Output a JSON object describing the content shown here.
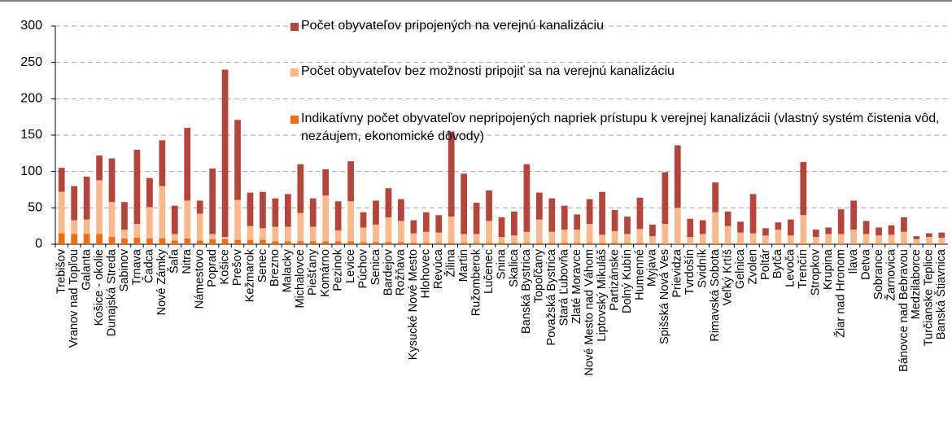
{
  "chart_data": {
    "type": "stacked_bar",
    "categories": [
      "Trebišov",
      "Vranov nad Topľou",
      "Galanta",
      "Košice - okolie",
      "Dunajská Streda",
      "Sabinov",
      "Trnava",
      "Čadca",
      "Nové Zámky",
      "Šaľa",
      "Nitra",
      "Námestovo",
      "Poprad",
      "Košice",
      "Prešov",
      "Kežmarok",
      "Senec",
      "Brezno",
      "Malacky",
      "Michalovce",
      "Piešťany",
      "Komárno",
      "Pezinok",
      "Levice",
      "Púchov",
      "Senica",
      "Bardejov",
      "Rožňava",
      "Kysucké Nové Mesto",
      "Hlohovec",
      "Revúca",
      "Žilina",
      "Martin",
      "Ružomberok",
      "Lučenec",
      "Snina",
      "Skalica",
      "Banská Bystrica",
      "Topoľčany",
      "Považská Bystrica",
      "Stará Ľubovňa",
      "Zlaté Moravce",
      "Nové Mesto nad Váhom",
      "Liptovský Mikuláš",
      "Partizánske",
      "Dolný Kubín",
      "Humenné",
      "Myjava",
      "Spišská Nová Ves",
      "Prievidza",
      "Tvrdošín",
      "Svidník",
      "Rimavská Sobota",
      "Veľký Krtíš",
      "Gelnica",
      "Zvolen",
      "Poltár",
      "Bytča",
      "Levoča",
      "Trenčín",
      "Stropkov",
      "Krupina",
      "Žiar nad Hronom",
      "Ilava",
      "Detva",
      "Sobrance",
      "Žarnovica",
      "Bánovce nad Bebravou",
      "Medzilaborce",
      "Turčianske Teplice",
      "Banská Štiavnica"
    ],
    "series": [
      {
        "name": "Indikatívny počet obyvateľov nepripojených napriek prístupu k verejnej kanalizácii (vlastný systém čistenia vôd, nezáujem, ekonomické dôvody)",
        "color": "#f26b10",
        "values": [
          15,
          14,
          14,
          14,
          10,
          8,
          9,
          8,
          8,
          5,
          8,
          5,
          7,
          7,
          6,
          6,
          6,
          4,
          4,
          4,
          4,
          4,
          4,
          4,
          3,
          3,
          3,
          3,
          2,
          2,
          2,
          2,
          2,
          2,
          2,
          2,
          2,
          2,
          2,
          2,
          2,
          2,
          2,
          2,
          2,
          2,
          2,
          1,
          1,
          1,
          1,
          1,
          1,
          1,
          1,
          1,
          1,
          1,
          1,
          1,
          1,
          1,
          1,
          1,
          1,
          1,
          1,
          1,
          1,
          1,
          1
        ]
      },
      {
        "name": "Počet obyvateľov bez možnosti pripojiť sa na verejnú kanalizáciu",
        "color": "#f9b98a",
        "values": [
          57,
          19,
          20,
          74,
          48,
          12,
          19,
          43,
          72,
          9,
          52,
          37,
          7,
          3,
          55,
          19,
          16,
          20,
          20,
          39,
          20,
          63,
          15,
          55,
          20,
          24,
          34,
          29,
          13,
          15,
          14,
          36,
          12,
          12,
          30,
          8,
          10,
          15,
          32,
          15,
          18,
          18,
          26,
          11,
          16,
          12,
          19,
          10,
          27,
          49,
          9,
          13,
          43,
          24,
          15,
          14,
          11,
          19,
          11,
          39,
          9,
          13,
          13,
          19,
          13,
          11,
          12,
          16,
          6,
          9,
          8
        ]
      },
      {
        "name": "Počet obyvateľov pripojených na verejnú kanalizáciu",
        "color": "#b5443a",
        "values": [
          33,
          47,
          59,
          34,
          60,
          38,
          102,
          40,
          63,
          39,
          100,
          18,
          90,
          230,
          110,
          46,
          50,
          39,
          45,
          67,
          39,
          36,
          40,
          55,
          21,
          33,
          40,
          30,
          18,
          27,
          24,
          117,
          83,
          43,
          42,
          27,
          33,
          93,
          37,
          46,
          33,
          21,
          34,
          59,
          29,
          24,
          43,
          16,
          71,
          86,
          25,
          19,
          41,
          20,
          15,
          54,
          10,
          10,
          22,
          73,
          10,
          9,
          34,
          40,
          18,
          11,
          13,
          20,
          4,
          5,
          7
        ]
      }
    ],
    "ylim": [
      0,
      300
    ],
    "yticks": [
      0,
      50,
      100,
      150,
      200,
      250,
      300
    ],
    "grid": true,
    "legend": "top"
  }
}
